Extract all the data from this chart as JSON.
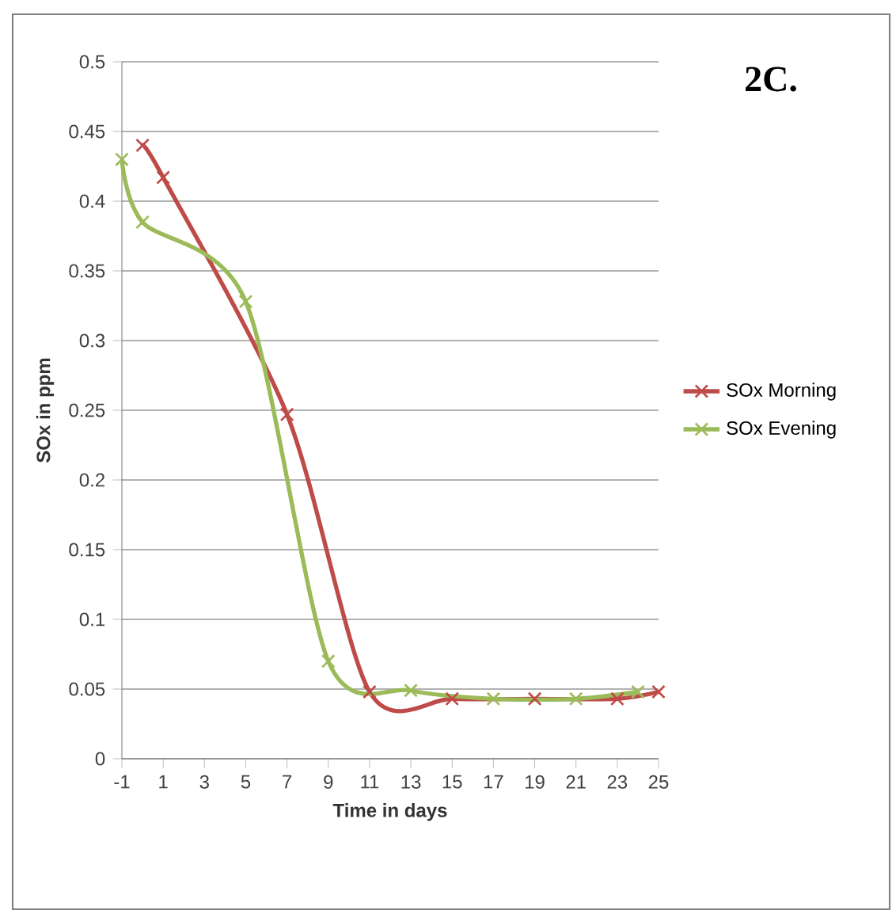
{
  "chart_data": {
    "type": "line",
    "title": "2C.",
    "xlabel": "Time in days",
    "ylabel": "SOx in ppm",
    "xlim": [
      -1,
      25
    ],
    "xticks": [
      -1,
      1,
      3,
      5,
      7,
      9,
      11,
      13,
      15,
      17,
      19,
      21,
      23,
      25
    ],
    "ylim": [
      0,
      0.5
    ],
    "yticks": [
      0,
      0.05,
      0.1,
      0.15,
      0.2,
      0.25,
      0.3,
      0.35,
      0.4,
      0.45,
      0.5
    ],
    "grid": "y",
    "legend": "right",
    "marker": "cross",
    "series": [
      {
        "name": "SOx Morning",
        "color": "#be4b48",
        "x": [
          0,
          1,
          7,
          11,
          15,
          19,
          23,
          25
        ],
        "values": [
          0.44,
          0.417,
          0.247,
          0.048,
          0.043,
          0.043,
          0.043,
          0.048
        ]
      },
      {
        "name": "SOx Evening",
        "color": "#9bbb59",
        "x": [
          -1,
          0,
          5,
          9,
          13,
          17,
          21,
          24
        ],
        "values": [
          0.43,
          0.385,
          0.328,
          0.07,
          0.049,
          0.043,
          0.043,
          0.048
        ]
      }
    ]
  }
}
